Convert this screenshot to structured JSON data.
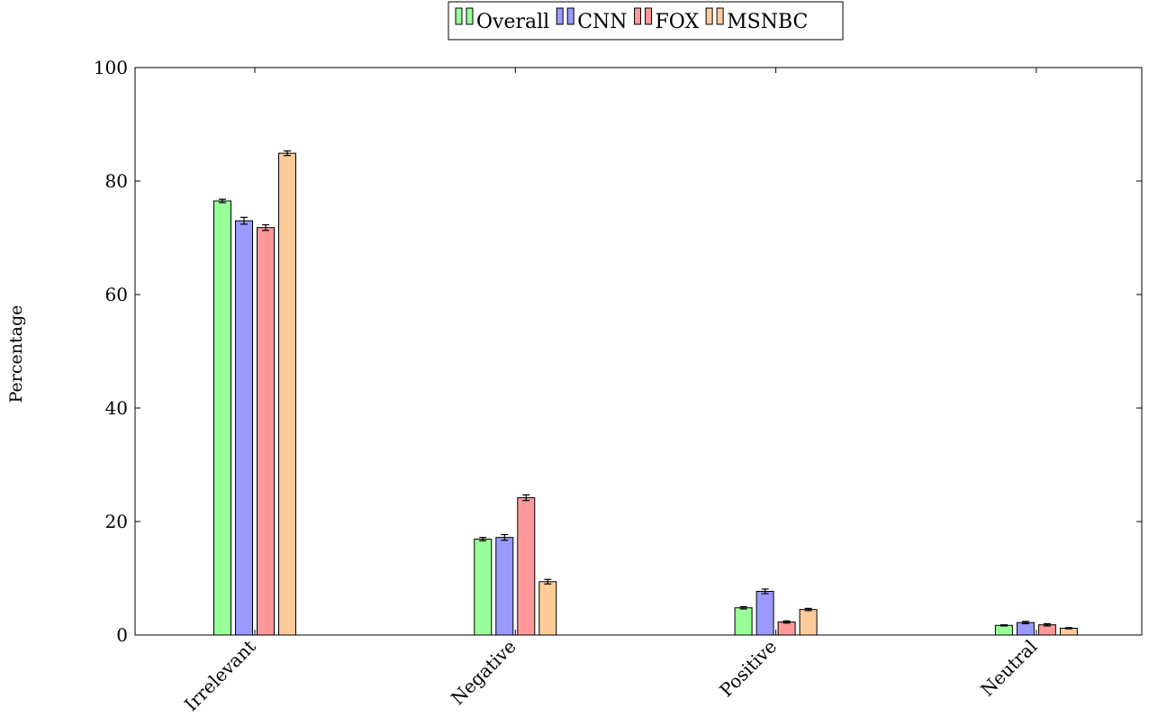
{
  "chart_data": {
    "type": "bar",
    "title": "",
    "xlabel": "",
    "ylabel": "Percentage",
    "ylim": [
      0,
      100
    ],
    "yticks": [
      0,
      20,
      40,
      60,
      80,
      100
    ],
    "categories": [
      "Irrelevant",
      "Negative",
      "Positive",
      "Neutral"
    ],
    "legend_position": "top-center",
    "grid": false,
    "series": [
      {
        "name": "Overall",
        "color": "#99ff99",
        "values": [
          76.5,
          16.9,
          4.8,
          1.7
        ],
        "errors": [
          0.3,
          0.3,
          0.2,
          0.1
        ]
      },
      {
        "name": "CNN",
        "color": "#9999ff",
        "values": [
          73.0,
          17.2,
          7.7,
          2.2
        ],
        "errors": [
          0.6,
          0.5,
          0.4,
          0.2
        ]
      },
      {
        "name": "FOX",
        "color": "#ff9999",
        "values": [
          71.8,
          24.2,
          2.3,
          1.8
        ],
        "errors": [
          0.5,
          0.5,
          0.2,
          0.2
        ]
      },
      {
        "name": "MSNBC",
        "color": "#ffcc99",
        "values": [
          84.9,
          9.4,
          4.5,
          1.2
        ],
        "errors": [
          0.4,
          0.4,
          0.2,
          0.1
        ]
      }
    ]
  }
}
